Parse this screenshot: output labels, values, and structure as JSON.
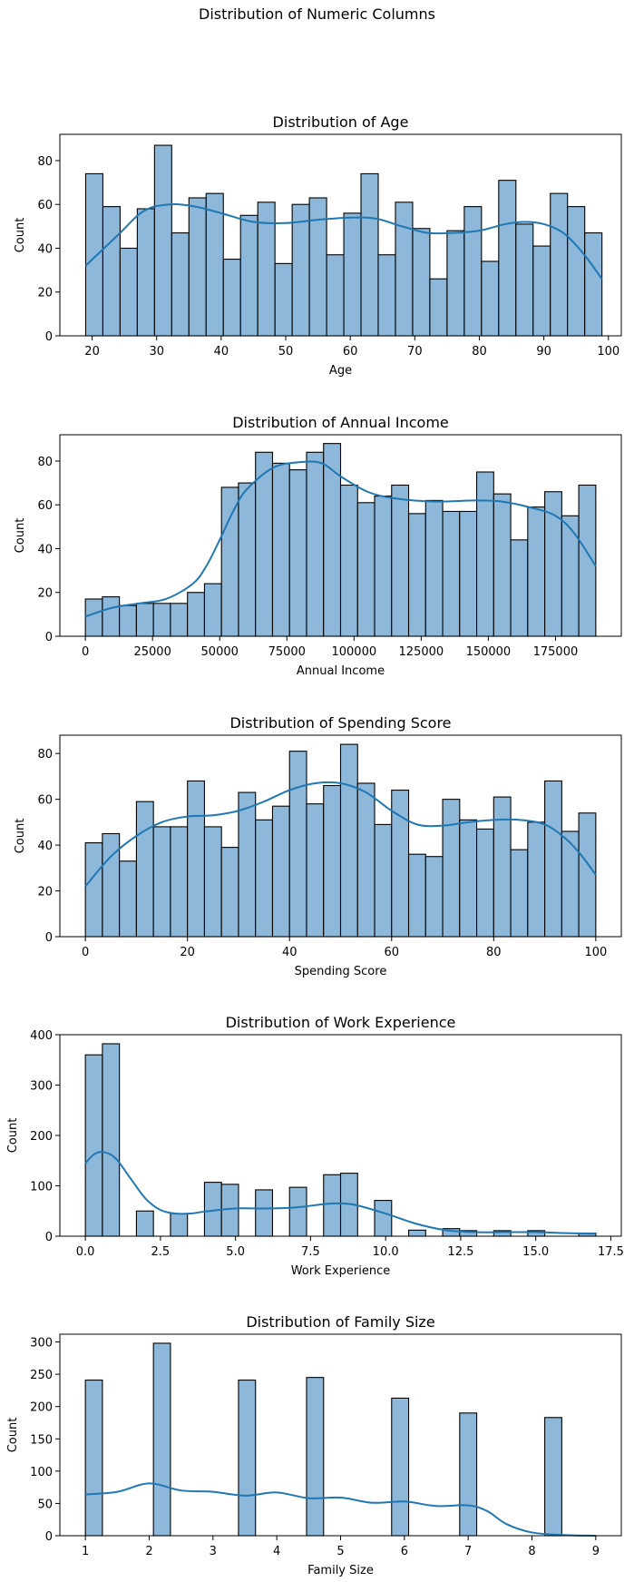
{
  "suptitle": "Distribution of Numeric Columns",
  "colors": {
    "bar_fill": "#8db8d9",
    "bar_edge": "#000000",
    "kde_line": "#1f77b4",
    "axis": "#000000"
  },
  "chart_data": [
    {
      "type": "bar",
      "title": "Distribution of Age",
      "xlabel": "Age",
      "ylabel": "Count",
      "xlim": [
        15,
        102
      ],
      "ylim": [
        0,
        92
      ],
      "xticks": [
        20,
        30,
        40,
        50,
        60,
        70,
        80,
        90,
        100
      ],
      "xtick_labels": [
        "20",
        "30",
        "40",
        "50",
        "60",
        "70",
        "80",
        "90",
        "100"
      ],
      "yticks": [
        0,
        20,
        40,
        60,
        80
      ],
      "bins": {
        "start": 19,
        "width": 2.6667
      },
      "values": [
        74,
        59,
        40,
        58,
        87,
        47,
        63,
        65,
        35,
        55,
        61,
        33,
        60,
        63,
        37,
        56,
        74,
        37,
        61,
        49,
        26,
        48,
        59,
        34,
        71,
        51,
        41,
        65,
        59,
        47
      ],
      "kde": {
        "x": [
          19,
          24,
          28,
          32,
          36,
          40,
          45,
          50,
          55,
          60,
          64,
          68,
          72,
          76,
          80,
          84,
          87,
          90,
          93,
          96,
          99
        ],
        "y": [
          32,
          46,
          57,
          60,
          59,
          56,
          52,
          51.5,
          53,
          54,
          53.5,
          50,
          47,
          47,
          48,
          51,
          52,
          51,
          47,
          38,
          26
        ]
      }
    },
    {
      "type": "bar",
      "title": "Distribution of Annual Income",
      "xlabel": "Annual Income",
      "ylabel": "Count",
      "xlim": [
        -9500,
        199500
      ],
      "ylim": [
        0,
        92
      ],
      "xticks": [
        0,
        25000,
        50000,
        75000,
        100000,
        125000,
        150000,
        175000
      ],
      "xtick_labels": [
        "0",
        "25000",
        "50000",
        "75000",
        "100000",
        "125000",
        "150000",
        "175000"
      ],
      "yticks": [
        0,
        20,
        40,
        60,
        80
      ],
      "bins": {
        "start": 0,
        "width": 6333.3
      },
      "values": [
        17,
        18,
        14,
        15,
        15,
        15,
        20,
        24,
        68,
        70,
        84,
        79,
        76,
        84,
        88,
        69,
        61,
        64,
        69,
        56,
        62,
        57,
        57,
        75,
        65,
        44,
        59,
        66,
        55,
        69
      ],
      "kde": {
        "x": [
          0,
          10000,
          20000,
          30000,
          40000,
          45000,
          50000,
          55000,
          60000,
          70000,
          80000,
          88000,
          95000,
          105000,
          115000,
          130000,
          145000,
          155000,
          165000,
          175000,
          182000,
          190000
        ],
        "y": [
          9,
          13,
          15,
          17,
          24,
          32,
          44,
          57,
          67,
          77,
          79.5,
          79,
          73,
          66,
          63,
          61.5,
          62,
          61.5,
          59,
          55,
          47,
          32
        ]
      }
    },
    {
      "type": "bar",
      "title": "Distribution of Spending Score",
      "xlabel": "Spending Score",
      "ylabel": "Count",
      "xlim": [
        -5,
        105
      ],
      "ylim": [
        0,
        88
      ],
      "xticks": [
        0,
        20,
        40,
        60,
        80,
        100
      ],
      "xtick_labels": [
        "0",
        "20",
        "40",
        "60",
        "80",
        "100"
      ],
      "yticks": [
        0,
        20,
        40,
        60,
        80
      ],
      "bins": {
        "start": 0,
        "width": 3.3333
      },
      "values": [
        41,
        45,
        33,
        59,
        48,
        48,
        68,
        48,
        39,
        63,
        51,
        57,
        81,
        58,
        66,
        84,
        67,
        49,
        64,
        36,
        35,
        60,
        51,
        47,
        61,
        38,
        50,
        68,
        46,
        54
      ],
      "kde": {
        "x": [
          0,
          5,
          10,
          15,
          20,
          25,
          30,
          35,
          40,
          45,
          50,
          55,
          60,
          65,
          70,
          75,
          80,
          85,
          90,
          94,
          97,
          100
        ],
        "y": [
          22,
          35,
          44,
          50,
          52.5,
          53,
          55,
          59,
          64,
          67,
          67,
          63,
          55,
          49,
          48.5,
          50,
          51,
          51,
          49,
          43,
          36,
          27
        ]
      }
    },
    {
      "type": "bar",
      "title": "Distribution of Work Experience",
      "xlabel": "Work Experience",
      "ylabel": "Count",
      "xlim": [
        -0.85,
        17.85
      ],
      "ylim": [
        0,
        400
      ],
      "xticks": [
        0.0,
        2.5,
        5.0,
        7.5,
        10.0,
        12.5,
        15.0,
        17.5
      ],
      "xtick_labels": [
        "0.0",
        "2.5",
        "5.0",
        "7.5",
        "10.0",
        "12.5",
        "15.0",
        "17.5"
      ],
      "yticks": [
        0,
        100,
        200,
        300,
        400
      ],
      "bins": {
        "start": 0,
        "width": 0.5667
      },
      "values": [
        360,
        382,
        0,
        50,
        0,
        45,
        0,
        107,
        103,
        0,
        92,
        0,
        97,
        0,
        122,
        125,
        0,
        71,
        0,
        12,
        0,
        15,
        11,
        0,
        11,
        0,
        11,
        0,
        0,
        6
      ],
      "kde": {
        "x": [
          0,
          0.3,
          0.6,
          1.0,
          1.5,
          2.0,
          2.5,
          3.0,
          3.5,
          4.0,
          5.0,
          6.0,
          7.0,
          8.0,
          8.5,
          9.0,
          10.0,
          11.0,
          12.0,
          13.0,
          14.0,
          15.0,
          16.0,
          17.0
        ],
        "y": [
          145,
          163,
          167,
          155,
          115,
          75,
          52,
          45,
          45,
          49,
          55,
          55,
          57,
          64,
          65,
          62,
          45,
          25,
          12,
          8,
          8,
          8,
          6,
          5
        ]
      }
    },
    {
      "type": "bar",
      "title": "Distribution of Family Size",
      "xlabel": "Family Size",
      "ylabel": "Count",
      "xlim": [
        0.6,
        9.4
      ],
      "ylim": [
        0,
        312
      ],
      "xticks": [
        1,
        2,
        3,
        4,
        5,
        6,
        7,
        8,
        9
      ],
      "xtick_labels": [
        "1",
        "2",
        "3",
        "4",
        "5",
        "6",
        "7",
        "8",
        "9"
      ],
      "yticks": [
        0,
        50,
        100,
        150,
        200,
        250,
        300
      ],
      "bins": {
        "start": 1,
        "width": 0.26667
      },
      "values": [
        241,
        0,
        0,
        0,
        298,
        0,
        0,
        0,
        0,
        241,
        0,
        0,
        0,
        245,
        0,
        0,
        0,
        0,
        213,
        0,
        0,
        0,
        190,
        0,
        0,
        0,
        0,
        183,
        0,
        0
      ],
      "kde": {
        "x": [
          1,
          1.5,
          2,
          2.5,
          3,
          3.5,
          4,
          4.5,
          5,
          5.5,
          6,
          6.5,
          7,
          7.3,
          7.6,
          8,
          8.5,
          9
        ],
        "y": [
          64,
          68,
          81,
          70,
          68,
          62,
          67,
          58,
          59,
          51,
          53,
          46,
          47,
          38,
          18,
          5,
          1,
          0
        ]
      }
    }
  ]
}
